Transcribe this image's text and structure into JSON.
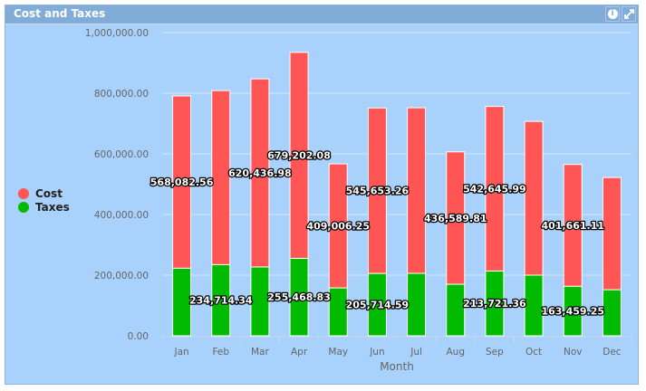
{
  "panel": {
    "title": "Cost and Taxes",
    "icons": [
      "info-icon",
      "expand-icon"
    ]
  },
  "chart_data": {
    "type": "bar",
    "stacked": true,
    "title": "",
    "xlabel": "Month",
    "ylabel": "",
    "ylim": [
      0,
      1000000
    ],
    "yticks": [
      "0.00",
      "200,000.00",
      "400,000.00",
      "600,000.00",
      "800,000.00",
      "1,000,000.00"
    ],
    "grid": true,
    "legend_position": "left",
    "categories": [
      "Jan",
      "Feb",
      "Mar",
      "Apr",
      "May",
      "Jun",
      "Jul",
      "Aug",
      "Sep",
      "Oct",
      "Nov",
      "Dec"
    ],
    "series": [
      {
        "name": "Taxes",
        "color": "#00bb00",
        "values": [
          223000,
          234714.34,
          227000,
          255468.83,
          158000,
          205714.59,
          206000,
          170000,
          213721.36,
          200000,
          163459.25,
          152000
        ],
        "data_labels": [
          "",
          "234,714.34",
          "",
          "255,468.83",
          "",
          "205,714.59",
          "",
          "",
          "213,721.36",
          "",
          "163,459.25",
          ""
        ]
      },
      {
        "name": "Cost",
        "color": "#ff5555",
        "values": [
          568082.56,
          574000,
          620436.98,
          679202.08,
          409006.25,
          545653.26,
          546000,
          436589.81,
          542645.99,
          507000,
          401661.11,
          370000
        ],
        "data_labels": [
          "568,082.56",
          "",
          "620,436.98",
          "679,202.08",
          "409,006.25",
          "545,653.26",
          "",
          "436,589.81",
          "542,645.99",
          "",
          "401,661.11",
          ""
        ]
      }
    ]
  }
}
